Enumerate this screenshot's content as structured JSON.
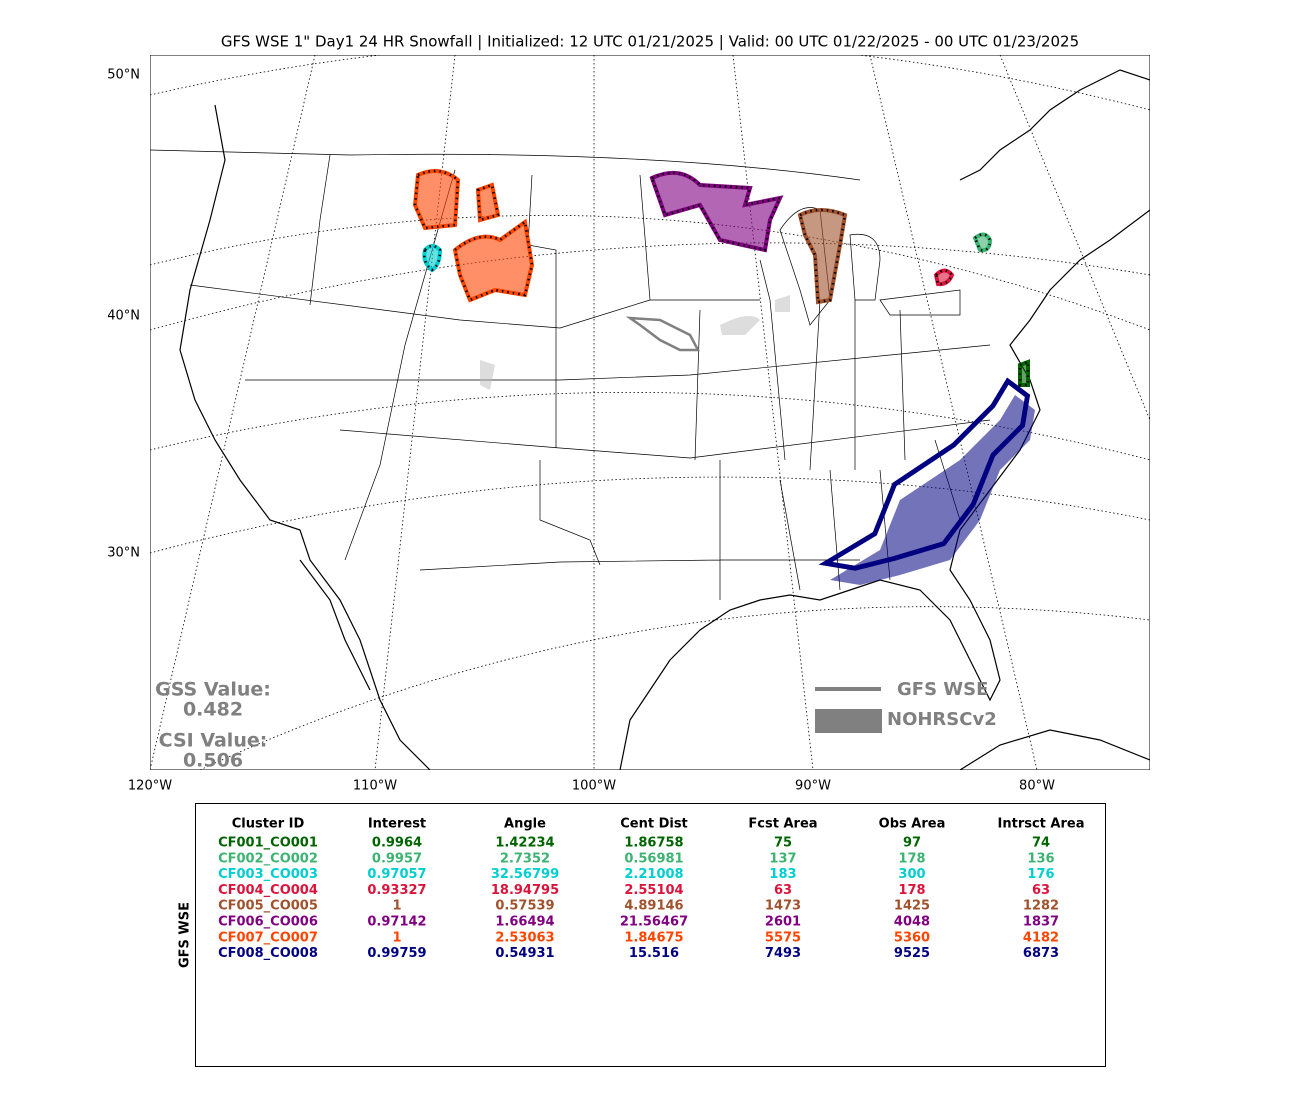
{
  "title": "GFS WSE 1\" Day1 24 HR Snowfall | Initialized: 12 UTC 01/21/2025 | Valid: 00 UTC 01/22/2025 - 00 UTC 01/23/2025",
  "map": {
    "lat_labels": [
      "50°N",
      "40°N",
      "30°N"
    ],
    "lon_labels": [
      "120°W",
      "110°W",
      "100°W",
      "90°W",
      "80°W"
    ]
  },
  "scores": {
    "gss_label": "GSS Value:",
    "gss_value": "0.482",
    "csi_label": "CSI Value:",
    "csi_value": "0.506"
  },
  "legend": {
    "forecast": "GFS WSE",
    "observed": "NOHRSCv2"
  },
  "table": {
    "side_label": "GFS WSE",
    "headers": [
      "Cluster ID",
      "Interest",
      "Angle",
      "Cent Dist",
      "Fcst Area",
      "Obs Area",
      "Intrsct Area"
    ],
    "rows": [
      {
        "color": "#006400",
        "cells": [
          "CF001_CO001",
          "0.9964",
          "1.42234",
          "1.86758",
          "75",
          "97",
          "74"
        ]
      },
      {
        "color": "#3cb371",
        "cells": [
          "CF002_CO002",
          "0.9957",
          "2.7352",
          "0.56981",
          "137",
          "178",
          "136"
        ]
      },
      {
        "color": "#00ced1",
        "cells": [
          "CF003_CO003",
          "0.97057",
          "32.56799",
          "2.21008",
          "183",
          "300",
          "176"
        ]
      },
      {
        "color": "#dc143c",
        "cells": [
          "CF004_CO004",
          "0.93327",
          "18.94795",
          "2.55104",
          "63",
          "178",
          "63"
        ]
      },
      {
        "color": "#a0522d",
        "cells": [
          "CF005_CO005",
          "1",
          "0.57539",
          "4.89146",
          "1473",
          "1425",
          "1282"
        ]
      },
      {
        "color": "#800080",
        "cells": [
          "CF006_CO006",
          "0.97142",
          "1.66494",
          "21.56467",
          "2601",
          "4048",
          "1837"
        ]
      },
      {
        "color": "#ff4500",
        "cells": [
          "CF007_CO007",
          "1",
          "2.53063",
          "1.84675",
          "5575",
          "5360",
          "4182"
        ]
      },
      {
        "color": "#000080",
        "cells": [
          "CF008_CO008",
          "0.99759",
          "0.54931",
          "15.516",
          "7493",
          "9525",
          "6873"
        ]
      }
    ]
  }
}
